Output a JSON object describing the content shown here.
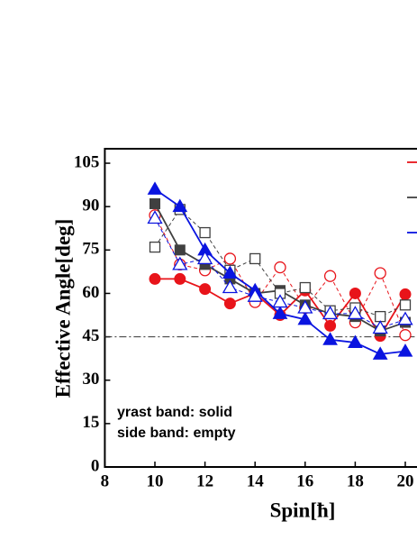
{
  "chart_data": {
    "type": "line",
    "y_label": "Effective Angle[deg]",
    "x_label": "Spin[ħ]",
    "annotations": [
      "yrast band: solid",
      "side band: empty"
    ],
    "x": [
      10,
      11,
      12,
      13,
      14,
      15,
      16,
      17,
      18,
      19,
      20
    ],
    "xlim": [
      8,
      20.5
    ],
    "xticks": [
      8,
      10,
      12,
      14,
      16,
      18,
      20
    ],
    "ylim": [
      0,
      110
    ],
    "yticks": [
      0,
      15,
      30,
      45,
      60,
      75,
      90,
      105
    ],
    "reference_line": 45,
    "series": [
      {
        "color": "#e8141a",
        "marker": "circle",
        "filled": true,
        "values": [
          65,
          65,
          61.5,
          56.5,
          60,
          52.5,
          61,
          48.8,
          60,
          45.3,
          59.7
        ]
      },
      {
        "color": "#e8141a",
        "marker": "circle",
        "filled": false,
        "values": [
          87,
          70,
          68,
          72,
          57,
          69,
          55,
          66,
          50,
          67,
          45.6
        ]
      },
      {
        "color": "#404040",
        "marker": "square",
        "filled": true,
        "values": [
          91,
          75,
          70,
          65,
          60,
          61,
          56,
          53,
          52,
          47,
          50
        ]
      },
      {
        "color": "#404040",
        "marker": "square",
        "filled": false,
        "values": [
          76,
          89,
          81,
          68,
          72,
          60,
          62,
          54,
          55,
          52,
          56
        ]
      },
      {
        "color": "#0a14e0",
        "marker": "triangle",
        "filled": true,
        "values": [
          96,
          90,
          75,
          67,
          61,
          53,
          51,
          44,
          43,
          39,
          40
        ]
      },
      {
        "color": "#0a14e0",
        "marker": "triangle",
        "filled": false,
        "values": [
          86,
          70,
          72,
          62,
          59,
          57,
          55,
          53,
          53,
          48,
          51
        ]
      }
    ]
  }
}
